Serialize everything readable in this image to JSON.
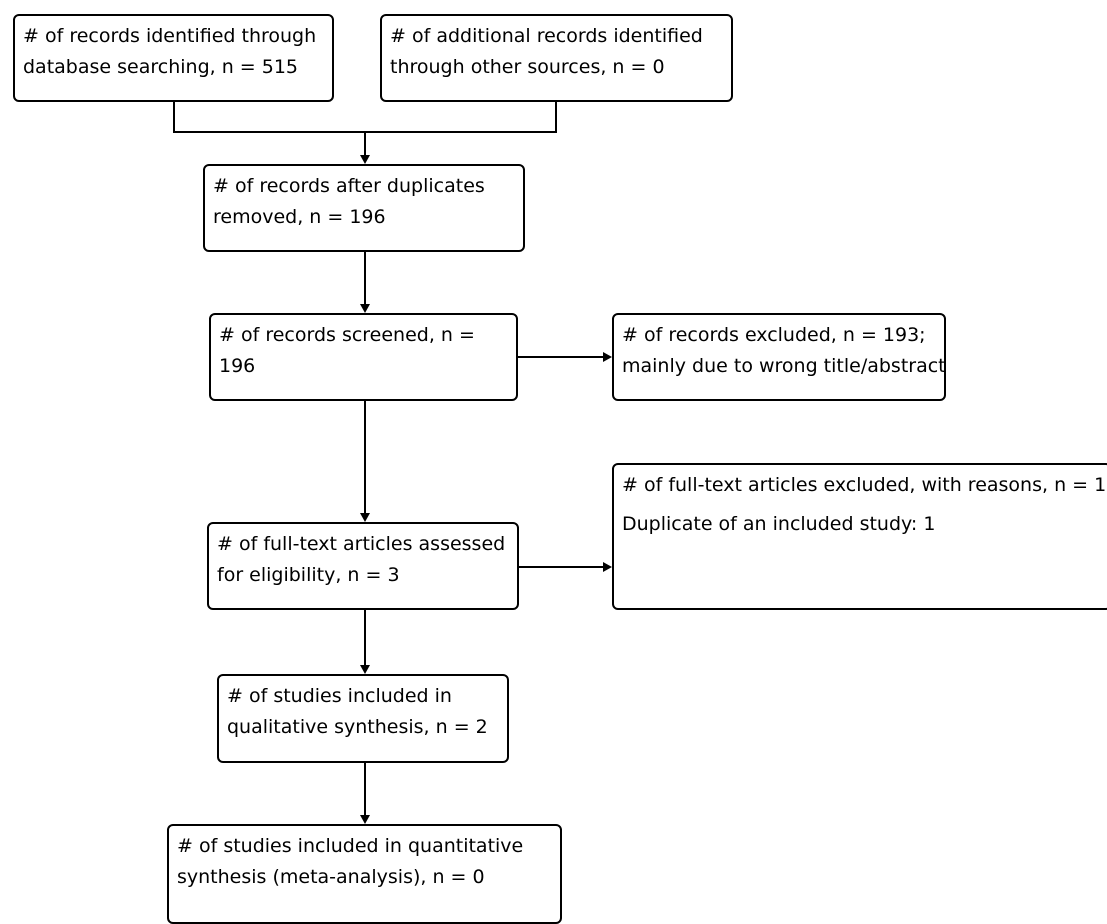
{
  "boxes": {
    "identified_db": {
      "line1": "# of records identified through",
      "line2": "database searching, n = 515"
    },
    "identified_other": {
      "line1": "# of additional records identified",
      "line2": "through other sources, n = 0"
    },
    "after_duplicates": {
      "line1": "# of records after duplicates",
      "line2": "removed, n = 196"
    },
    "screened": {
      "line1": "# of records screened, n =",
      "line2": "196"
    },
    "excluded": {
      "line1": "# of records excluded, n = 193;",
      "line2": "mainly due to wrong title/abstract"
    },
    "fulltext_assessed": {
      "line1": "# of full-text articles assessed",
      "line2": "for eligibility, n = 3"
    },
    "fulltext_excluded": {
      "line1": "# of full-text articles excluded, with reasons, n = 1",
      "line2": "Duplicate of an included study: 1"
    },
    "qualitative": {
      "line1": "# of studies included in",
      "line2": "qualitative synthesis, n = 2"
    },
    "quantitative": {
      "line1": "# of studies included in quantitative",
      "line2": "synthesis (meta-analysis), n = 0"
    }
  }
}
